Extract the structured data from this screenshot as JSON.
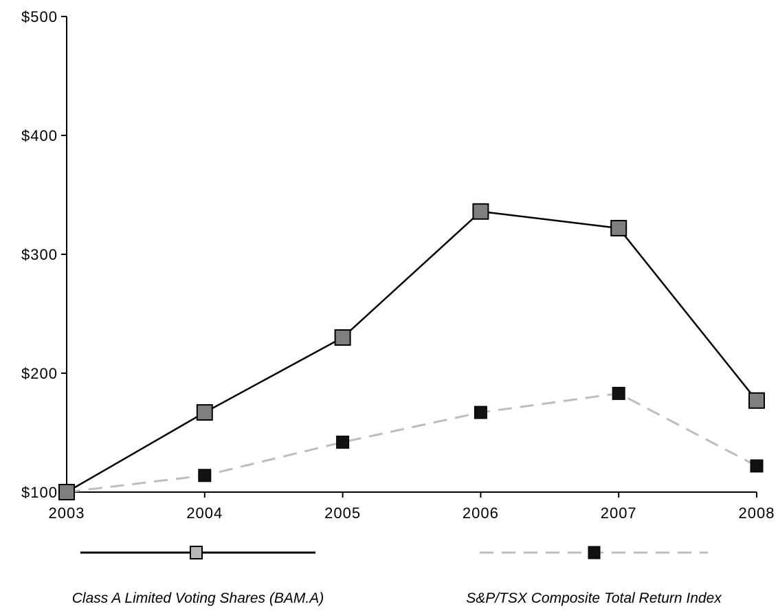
{
  "chart_data": {
    "type": "line",
    "x": [
      "2003",
      "2004",
      "2005",
      "2006",
      "2007",
      "2008"
    ],
    "yticks": [
      "$100",
      "$200",
      "$300",
      "$400",
      "$500"
    ],
    "ylim": [
      100,
      500
    ],
    "grid": false,
    "legend_position": "bottom",
    "series": [
      {
        "name": "Class A Limited Voting Shares (BAM.A)",
        "values": [
          100,
          167,
          230,
          336,
          322,
          177
        ],
        "line_color": "#000000",
        "line_style": "solid",
        "marker": "square",
        "marker_color": "#7f7f7f"
      },
      {
        "name": "S&P/TSX Composite Total Return Index",
        "values": [
          100,
          114,
          142,
          167,
          183,
          122
        ],
        "line_color": "#bdbdbd",
        "line_style": "dashed",
        "marker": "square",
        "marker_color": "#111111"
      }
    ]
  }
}
